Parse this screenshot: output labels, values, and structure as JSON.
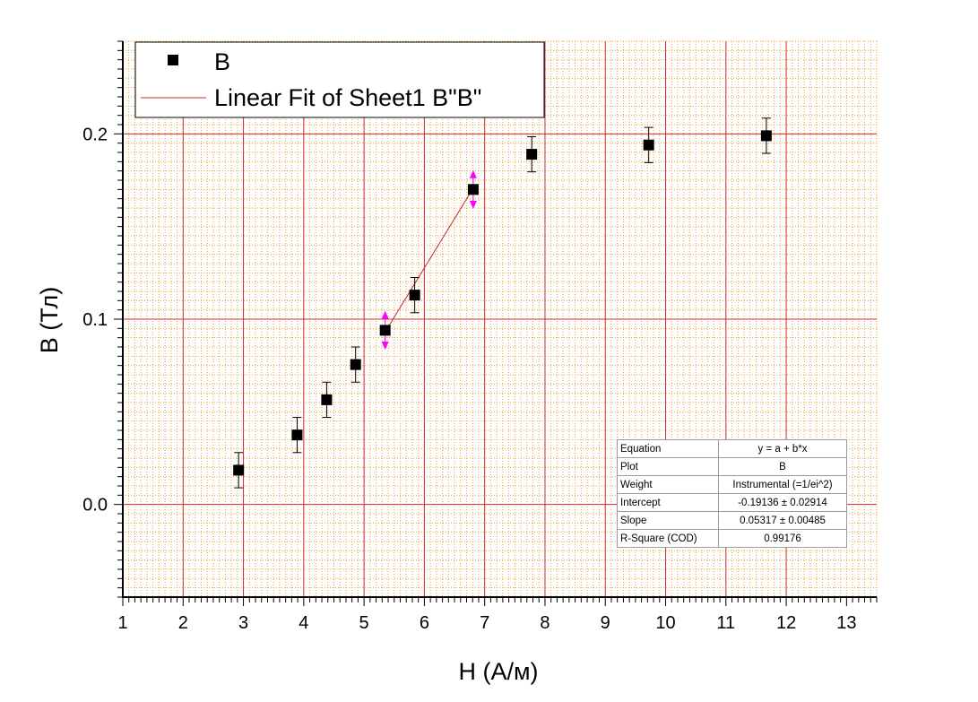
{
  "colors": {
    "major_grid": "#d62a2a",
    "minor_grid": "#e8a33a",
    "fit_line": "#c8282a",
    "point": "#000000",
    "highlight_bar": "#ff00ff"
  },
  "legend": {
    "position": "top-left",
    "entries": [
      {
        "marker": "square",
        "label": "B"
      },
      {
        "marker": "line",
        "label": "Linear Fit of Sheet1 B\"B\""
      }
    ]
  },
  "chart_data": {
    "type": "scatter",
    "title": "",
    "xlabel": "H (А/м)",
    "ylabel": "B (Тл)",
    "xlim": [
      1,
      13.5
    ],
    "ylim": [
      -0.05,
      0.25
    ],
    "x_ticks": [
      1,
      2,
      3,
      4,
      5,
      6,
      7,
      8,
      9,
      10,
      11,
      12,
      13
    ],
    "y_ticks": [
      0.0,
      0.1,
      0.2
    ],
    "y_tick_labels": [
      "0.0",
      "0.1",
      "0.2"
    ],
    "grid": true,
    "series": [
      {
        "name": "B",
        "marker": "square",
        "x": [
          2.92,
          3.89,
          4.38,
          4.86,
          5.35,
          5.84,
          6.81,
          7.78,
          9.72,
          11.67
        ],
        "y": [
          0.0185,
          0.0375,
          0.0565,
          0.0755,
          0.094,
          0.113,
          0.17,
          0.189,
          0.194,
          0.199
        ],
        "yerr": 0.0095,
        "highlighted_error_bars": [
          4,
          6
        ]
      },
      {
        "name": "Linear Fit of Sheet1 B\"B\"",
        "type": "line",
        "x": [
          5.35,
          6.81
        ],
        "y": [
          0.0931,
          0.1707
        ]
      }
    ]
  },
  "fit_table": [
    {
      "key": "Equation",
      "value": "y = a + b*x"
    },
    {
      "key": "Plot",
      "value": "B"
    },
    {
      "key": "Weight",
      "value": "Instrumental (=1/ei^2)"
    },
    {
      "key": "Intercept",
      "value": "-0.19136 ± 0.02914"
    },
    {
      "key": "Slope",
      "value": "0.05317 ± 0.00485"
    },
    {
      "key": "R-Square (COD)",
      "value": "0.99176"
    }
  ]
}
